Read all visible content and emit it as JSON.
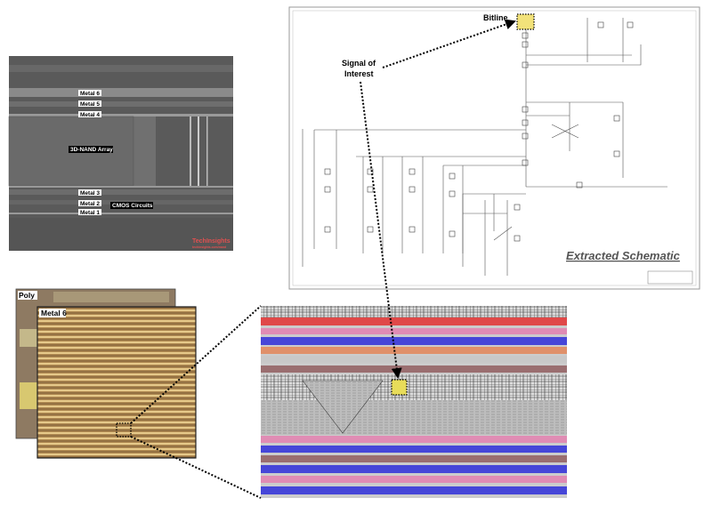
{
  "sem_image": {
    "layer_labels": [
      "Metal 6",
      "Metal 5",
      "Metal 4",
      "Metal 3",
      "Metal 2",
      "Metal 1"
    ],
    "array_label": "3D-NAND Array",
    "cmos_label": "CMOS Circuits",
    "watermark": "TechInsights",
    "watermark_url": "techinsights.com/nand"
  },
  "die_images": {
    "back_layer_label": "Poly",
    "front_layer_label": "Metal 6"
  },
  "schematic": {
    "bitline_label": "Bitline",
    "signal_label_line1": "Signal of",
    "signal_label_line2": "Interest",
    "title": "Extracted Schematic"
  },
  "colors": {
    "highlight": "#f2e27a",
    "metal_red": "#e04848",
    "metal_pink": "#e08cb4",
    "metal_blue": "#4646d8",
    "metal_orange": "#e0906a",
    "metal_brown": "#9a6e70",
    "metal_gray": "#c8c8c8"
  }
}
